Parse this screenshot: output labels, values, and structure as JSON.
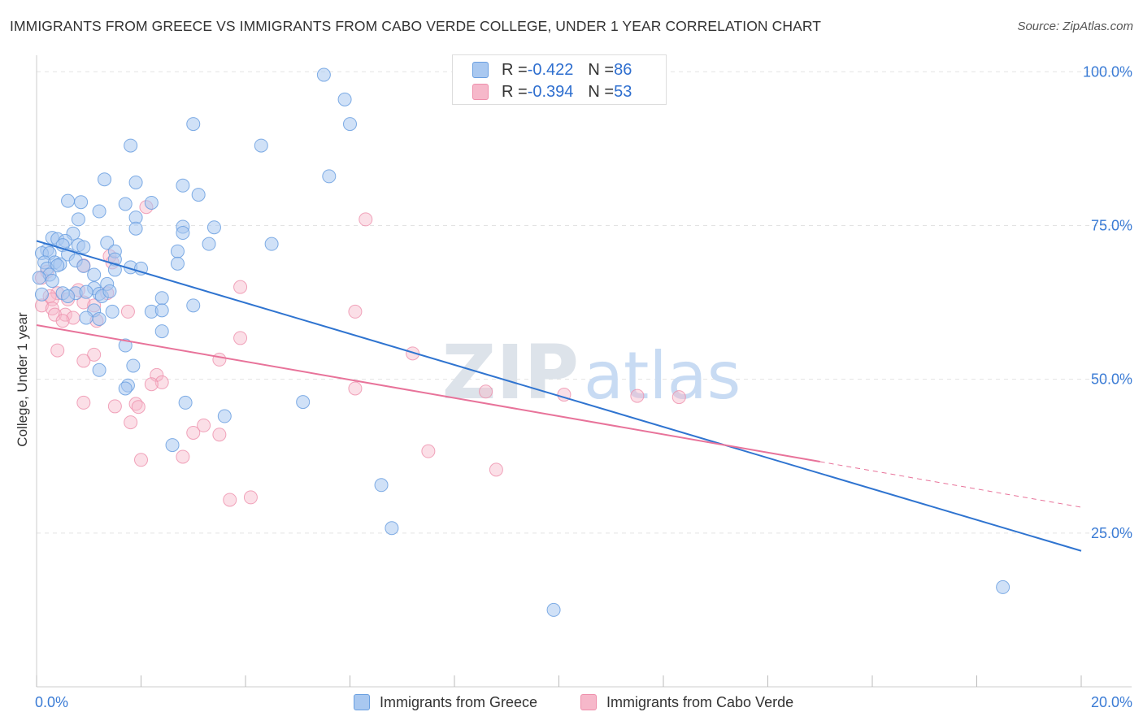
{
  "title": "IMMIGRANTS FROM GREECE VS IMMIGRANTS FROM CABO VERDE COLLEGE, UNDER 1 YEAR CORRELATION CHART",
  "source": "Source: ZipAtlas.com",
  "watermark": {
    "zip": "ZIP",
    "atlas": "atlas"
  },
  "legend": {
    "rows": [
      {
        "r_label": "R = ",
        "r_value": "-0.422",
        "n_label": "N = ",
        "n_value": "86"
      },
      {
        "r_label": "R = ",
        "r_value": "-0.394",
        "n_label": "N = ",
        "n_value": "53"
      }
    ]
  },
  "bottom_legend": {
    "greece": "Immigrants from Greece",
    "caboverde": "Immigrants from Cabo Verde"
  },
  "colors": {
    "greece_fill": "#a9c8f0",
    "greece_stroke": "#6a9fe0",
    "greece_line": "#2f74d0",
    "cabo_fill": "#f6b8ca",
    "cabo_stroke": "#ee8fab",
    "cabo_line": "#e8739a",
    "axis_text": "#3a7bd5",
    "grid": "#e3e3e3"
  },
  "chart_data": {
    "type": "scatter",
    "title": "IMMIGRANTS FROM GREECE VS IMMIGRANTS FROM CABO VERDE COLLEGE, UNDER 1 YEAR CORRELATION CHART",
    "xlabel": "",
    "ylabel": "College, Under 1 year",
    "xlim": [
      0,
      20
    ],
    "ylim": [
      0,
      104
    ],
    "x_tick_labels": [
      {
        "value": 0,
        "label": "0.0%"
      },
      {
        "value": 20,
        "label": "20.0%"
      }
    ],
    "y_ticks": [
      {
        "value": 25,
        "label": "25.0%"
      },
      {
        "value": 50,
        "label": "50.0%"
      },
      {
        "value": 75,
        "label": "75.0%"
      },
      {
        "value": 100,
        "label": "100.0%"
      }
    ],
    "series": [
      {
        "name": "Immigrants from Greece",
        "r": -0.422,
        "n": 86,
        "trend": {
          "x0": 0,
          "y0": 72.5,
          "x1": 20,
          "y1": 22.1
        },
        "points": [
          [
            5.5,
            99.5
          ],
          [
            5.9,
            95.5
          ],
          [
            6.0,
            91.5
          ],
          [
            3.0,
            91.5
          ],
          [
            1.8,
            88.0
          ],
          [
            4.3,
            88.0
          ],
          [
            5.6,
            83.0
          ],
          [
            1.3,
            82.5
          ],
          [
            1.9,
            82.0
          ],
          [
            2.8,
            81.5
          ],
          [
            3.1,
            80.0
          ],
          [
            0.6,
            79.0
          ],
          [
            0.85,
            78.8
          ],
          [
            1.7,
            78.5
          ],
          [
            2.2,
            78.7
          ],
          [
            1.2,
            77.3
          ],
          [
            1.9,
            76.3
          ],
          [
            0.8,
            76.0
          ],
          [
            1.9,
            74.5
          ],
          [
            2.8,
            74.8
          ],
          [
            3.4,
            74.7
          ],
          [
            0.7,
            73.7
          ],
          [
            2.8,
            73.8
          ],
          [
            0.3,
            73.0
          ],
          [
            0.4,
            72.8
          ],
          [
            0.55,
            72.5
          ],
          [
            0.5,
            71.8
          ],
          [
            0.8,
            71.8
          ],
          [
            1.35,
            72.2
          ],
          [
            3.3,
            72.0
          ],
          [
            4.5,
            72.0
          ],
          [
            0.2,
            71.0
          ],
          [
            0.1,
            70.5
          ],
          [
            0.25,
            70.5
          ],
          [
            0.6,
            70.3
          ],
          [
            0.9,
            71.5
          ],
          [
            1.5,
            70.8
          ],
          [
            2.7,
            70.8
          ],
          [
            0.15,
            69.0
          ],
          [
            0.35,
            69.0
          ],
          [
            0.45,
            68.7
          ],
          [
            0.75,
            69.3
          ],
          [
            1.5,
            69.5
          ],
          [
            2.7,
            68.8
          ],
          [
            0.2,
            68.0
          ],
          [
            0.4,
            68.5
          ],
          [
            0.9,
            68.4
          ],
          [
            1.8,
            68.2
          ],
          [
            2.0,
            68.0
          ],
          [
            0.25,
            67.0
          ],
          [
            0.05,
            66.5
          ],
          [
            1.1,
            67.0
          ],
          [
            1.5,
            67.8
          ],
          [
            0.3,
            66.0
          ],
          [
            1.35,
            65.5
          ],
          [
            1.1,
            64.8
          ],
          [
            0.75,
            64.0
          ],
          [
            0.95,
            64.2
          ],
          [
            1.2,
            63.9
          ],
          [
            1.25,
            63.5
          ],
          [
            1.4,
            64.3
          ],
          [
            0.5,
            64.0
          ],
          [
            2.4,
            63.2
          ],
          [
            1.1,
            61.2
          ],
          [
            1.45,
            61.0
          ],
          [
            2.2,
            61.0
          ],
          [
            2.4,
            61.2
          ],
          [
            3.0,
            62.0
          ],
          [
            1.2,
            59.8
          ],
          [
            0.95,
            60.0
          ],
          [
            2.4,
            57.8
          ],
          [
            1.7,
            55.5
          ],
          [
            1.85,
            52.2
          ],
          [
            1.2,
            51.5
          ],
          [
            1.75,
            49.0
          ],
          [
            1.7,
            48.5
          ],
          [
            2.85,
            46.2
          ],
          [
            5.1,
            46.3
          ],
          [
            3.6,
            44.0
          ],
          [
            2.6,
            39.3
          ],
          [
            6.6,
            32.8
          ],
          [
            6.8,
            25.8
          ],
          [
            18.5,
            16.2
          ],
          [
            9.9,
            12.5
          ],
          [
            0.1,
            63.8
          ],
          [
            0.6,
            63.5
          ]
        ]
      },
      {
        "name": "Immigrants from Cabo Verde",
        "r": -0.394,
        "n": 53,
        "trend": {
          "x0": 0,
          "y0": 58.8,
          "x1": 15.0,
          "y1": 36.6,
          "dashed_to_x": 20,
          "dashed_to_y": 29.2
        },
        "points": [
          [
            6.3,
            76.0
          ],
          [
            2.1,
            78.0
          ],
          [
            1.4,
            70.0
          ],
          [
            1.45,
            69.0
          ],
          [
            0.9,
            68.5
          ],
          [
            0.2,
            67.5
          ],
          [
            0.1,
            66.5
          ],
          [
            3.9,
            65.0
          ],
          [
            0.8,
            64.5
          ],
          [
            0.4,
            64.0
          ],
          [
            1.35,
            64.0
          ],
          [
            0.25,
            63.5
          ],
          [
            0.3,
            63.0
          ],
          [
            0.6,
            63.0
          ],
          [
            0.9,
            62.5
          ],
          [
            0.1,
            62.0
          ],
          [
            1.1,
            62.0
          ],
          [
            0.3,
            61.5
          ],
          [
            1.75,
            61.0
          ],
          [
            6.1,
            61.0
          ],
          [
            0.35,
            60.5
          ],
          [
            0.55,
            60.5
          ],
          [
            0.7,
            60.0
          ],
          [
            1.15,
            59.5
          ],
          [
            0.5,
            59.5
          ],
          [
            3.9,
            56.7
          ],
          [
            7.2,
            54.2
          ],
          [
            0.4,
            54.7
          ],
          [
            1.1,
            54.0
          ],
          [
            0.9,
            53.0
          ],
          [
            3.5,
            53.2
          ],
          [
            2.3,
            50.7
          ],
          [
            2.4,
            49.5
          ],
          [
            2.2,
            49.2
          ],
          [
            6.1,
            48.5
          ],
          [
            8.6,
            48.0
          ],
          [
            10.1,
            47.5
          ],
          [
            11.5,
            47.3
          ],
          [
            12.3,
            47.1
          ],
          [
            0.9,
            46.2
          ],
          [
            1.5,
            45.6
          ],
          [
            1.9,
            46.0
          ],
          [
            1.95,
            45.5
          ],
          [
            1.8,
            43.0
          ],
          [
            3.2,
            42.5
          ],
          [
            3.0,
            41.3
          ],
          [
            3.5,
            41.0
          ],
          [
            2.8,
            37.4
          ],
          [
            2.0,
            36.9
          ],
          [
            7.5,
            38.3
          ],
          [
            8.8,
            35.3
          ],
          [
            4.1,
            30.8
          ],
          [
            3.7,
            30.4
          ]
        ]
      }
    ]
  }
}
